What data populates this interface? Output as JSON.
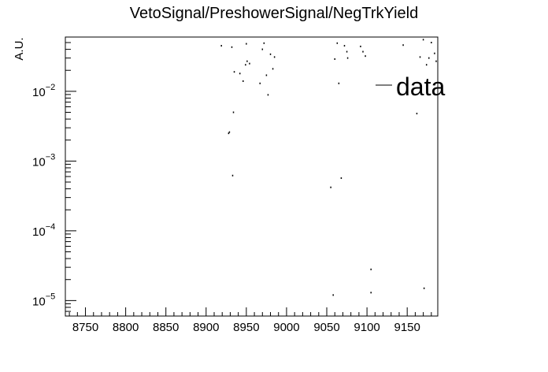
{
  "chart_data": {
    "type": "scatter",
    "title": "VetoSignal/PreshowerSignal/NegTrkYield",
    "xlabel": "",
    "ylabel": "A.U.",
    "xlim": [
      8725,
      9188
    ],
    "ylim": [
      6e-06,
      0.06
    ],
    "log_y": true,
    "grid": false,
    "legend_position": "top-right",
    "x_ticks": [
      8750,
      8800,
      8850,
      8900,
      8950,
      9000,
      9050,
      9100,
      9150
    ],
    "y_ticks": [
      {
        "base": "10",
        "exp": "−5",
        "value": 1e-05
      },
      {
        "base": "10",
        "exp": "−4",
        "value": 0.0001
      },
      {
        "base": "10",
        "exp": "−3",
        "value": 0.001
      },
      {
        "base": "10",
        "exp": "−2",
        "value": 0.01
      }
    ],
    "series": [
      {
        "name": "data",
        "color": "#000000",
        "points": [
          [
            8919,
            0.045
          ],
          [
            8932,
            0.043
          ],
          [
            8935,
            0.019
          ],
          [
            8942,
            0.018
          ],
          [
            8946,
            0.014
          ],
          [
            8949,
            0.024
          ],
          [
            8950,
            0.048
          ],
          [
            8951,
            0.027
          ],
          [
            8954,
            0.025
          ],
          [
            8967,
            0.013
          ],
          [
            8970,
            0.04
          ],
          [
            8972,
            0.049
          ],
          [
            8975,
            0.017
          ],
          [
            8977,
            0.0089
          ],
          [
            8980,
            0.034
          ],
          [
            8983,
            0.021
          ],
          [
            8985,
            0.031
          ],
          [
            8934,
            0.005
          ],
          [
            8928,
            0.0025
          ],
          [
            8929,
            0.0026
          ],
          [
            8933,
            0.00062
          ],
          [
            9055,
            0.00042
          ],
          [
            9068,
            0.00057
          ],
          [
            9060,
            0.029
          ],
          [
            9063,
            0.049
          ],
          [
            9065,
            0.013
          ],
          [
            9072,
            0.045
          ],
          [
            9075,
            0.037
          ],
          [
            9076,
            0.03
          ],
          [
            9092,
            0.044
          ],
          [
            9095,
            0.037
          ],
          [
            9098,
            0.032
          ],
          [
            9145,
            0.046
          ],
          [
            9162,
            0.0048
          ],
          [
            9166,
            0.031
          ],
          [
            9170,
            0.055
          ],
          [
            9174,
            0.024
          ],
          [
            9177,
            0.03
          ],
          [
            9180,
            0.05
          ],
          [
            9184,
            0.035
          ],
          [
            9186,
            0.027
          ],
          [
            9058,
            1.2e-05
          ],
          [
            9105,
            2.8e-05
          ],
          [
            9105,
            1.3e-05
          ],
          [
            9171,
            1.5e-05
          ]
        ]
      }
    ]
  }
}
